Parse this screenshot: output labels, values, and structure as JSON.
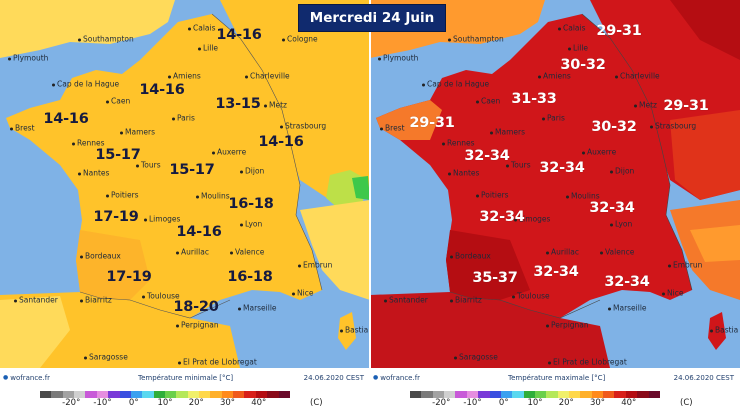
{
  "date_title": "Mercredi 24 Juin",
  "left_map": {
    "title": "Température minimale [°C]",
    "credit": "wofrance.fr",
    "date": "24.06.2020 CEST",
    "cities": [
      "Plymouth",
      "Southampton",
      "Calais",
      "Lille",
      "Cologne",
      "Cap de la Hague",
      "Amiens",
      "Charleville",
      "Caen",
      "Metz",
      "Brest",
      "Paris",
      "Strasbourg",
      "Mamers",
      "Rennes",
      "Auxerre",
      "Tours",
      "Nantes",
      "Dijon",
      "Poitiers",
      "Moulins",
      "Limoges",
      "Lyon",
      "Bordeaux",
      "Aurillac",
      "Valence",
      "Embrun",
      "Toulouse",
      "Biarritz",
      "Nice",
      "Santander",
      "Marseille",
      "Perpignan",
      "Bastia",
      "Saragosse",
      "El Prat de Llobregat"
    ],
    "temperature_labels": [
      "14-16",
      "14-16",
      "13-15",
      "14-16",
      "14-16",
      "15-17",
      "15-17",
      "16-18",
      "17-19",
      "14-16",
      "17-19",
      "16-18",
      "18-20"
    ],
    "colors": {
      "sea": "#7fb2e6",
      "land_main": "#ffc32a",
      "land_warm": "#fdb42a",
      "land_outer": "#ffda5a",
      "alps_cool": "#7fd24e"
    }
  },
  "right_map": {
    "title": "Température maximale [°C]",
    "credit": "wofrance.fr",
    "date": "24.06.2020 CEST",
    "cities": [
      "Plymouth",
      "Southampton",
      "Calais",
      "Lille",
      "Cap de la Hague",
      "Amiens",
      "Charleville",
      "Caen",
      "Metz",
      "Brest",
      "Paris",
      "Strasbourg",
      "Mamers",
      "Rennes",
      "Auxerre",
      "Tours",
      "Nantes",
      "Dijon",
      "Poitiers",
      "Moulins",
      "Limoges",
      "Lyon",
      "Bordeaux",
      "Aurillac",
      "Valence",
      "Embrun",
      "Toulouse",
      "Biarritz",
      "Nice",
      "Santander",
      "Marseille",
      "Perpignan",
      "Bastia",
      "Saragosse",
      "El Prat de Llobregat"
    ],
    "temperature_labels": [
      "29-31",
      "30-32",
      "31-33",
      "29-31",
      "29-31",
      "30-32",
      "32-34",
      "32-34",
      "32-34",
      "32-34",
      "35-37",
      "32-34",
      "32-34"
    ],
    "colors": {
      "sea": "#7fb2e6",
      "land_main": "#d0161a",
      "land_hot": "#b50d12",
      "land_outer": "#f5792a",
      "uk": "#ff9a2e"
    }
  },
  "legend": {
    "ticks": [
      "-20°",
      "-10°",
      "0°",
      "10°",
      "20°",
      "30°",
      "40°"
    ],
    "unit": "(C)",
    "colors": [
      "#4a4a4a",
      "#7a7a7a",
      "#a3a3a3",
      "#d0d0d0",
      "#c85ad8",
      "#e68ee0",
      "#7a3ad8",
      "#3a4fe0",
      "#3aa0f0",
      "#5ad8f0",
      "#2eae3a",
      "#6ad04a",
      "#b4e85a",
      "#f0f06a",
      "#ffd84a",
      "#ffb02a",
      "#ff8a1a",
      "#f05a1a",
      "#d8201a",
      "#b50d12",
      "#8a0a1a",
      "#6a0a2a"
    ]
  }
}
